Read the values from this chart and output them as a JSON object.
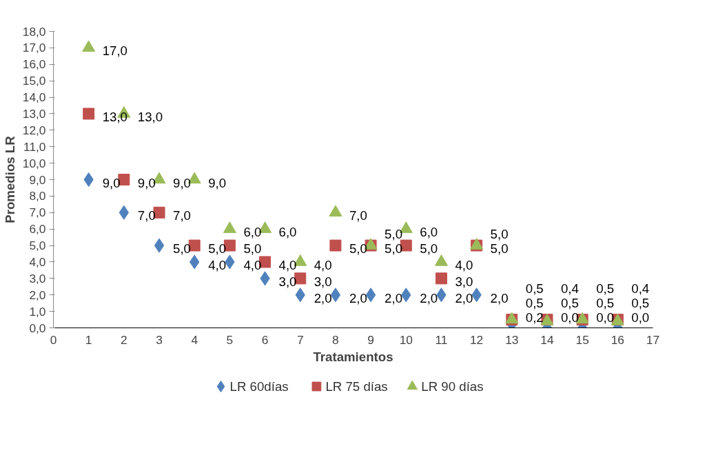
{
  "chart_data": {
    "type": "scatter",
    "xlabel": "Tratamientos",
    "ylabel": "Promedios LR",
    "x": [
      1,
      2,
      3,
      4,
      5,
      6,
      7,
      8,
      9,
      10,
      11,
      12,
      13,
      14,
      15,
      16
    ],
    "series": [
      {
        "name": "LR 60días",
        "color": "#4f81bd",
        "marker": "diamond",
        "values": [
          9,
          7,
          5,
          4,
          4,
          3,
          2,
          2,
          2,
          2,
          2,
          2,
          0.2,
          0,
          0,
          0
        ],
        "value_labels": [
          "9,0",
          "7,0",
          "5,0",
          "4,0",
          "4,0",
          "3,0",
          "2,0",
          "2,0",
          "2,0",
          "2,0",
          "2,0",
          "2,0",
          "0,2",
          "0,0",
          "0,0",
          "0,0"
        ]
      },
      {
        "name": "LR 75 días",
        "color": "#c0504d",
        "marker": "square",
        "values": [
          13,
          9,
          7,
          5,
          5,
          4,
          3,
          5,
          5,
          5,
          3,
          5,
          0.5,
          0.5,
          0.5,
          0.5
        ],
        "value_labels": [
          "13,0",
          "9,0",
          "7,0",
          "5,0",
          "5,0",
          "4,0",
          "3,0",
          "5,0",
          "5,0",
          "5,0",
          "3,0",
          "5,0",
          "0,5",
          "0,5",
          "0,5",
          "0,5"
        ]
      },
      {
        "name": "LR 90 días",
        "color": "#9bbb59",
        "marker": "triangle",
        "values": [
          17,
          13,
          9,
          9,
          6,
          6,
          4,
          7,
          5,
          6,
          4,
          5,
          0.5,
          0.4,
          0.5,
          0.4
        ],
        "value_labels": [
          "17,0",
          "13,0",
          "9,0",
          "9,0",
          "6,0",
          "6,0",
          "4,0",
          "7,0",
          "5,0",
          "6,0",
          "4,0",
          "5,0",
          "0,5",
          "0,4",
          "0,5",
          "0,4"
        ]
      }
    ],
    "xlim": [
      0,
      17
    ],
    "xticks": [
      0,
      1,
      2,
      3,
      4,
      5,
      6,
      7,
      8,
      9,
      10,
      11,
      12,
      13,
      14,
      15,
      16,
      17
    ],
    "ylim": [
      0,
      18
    ],
    "yticks": [
      {
        "value": 0,
        "label": "0,0"
      },
      {
        "value": 1,
        "label": "1,0"
      },
      {
        "value": 2,
        "label": "2,0"
      },
      {
        "value": 3,
        "label": "3,0"
      },
      {
        "value": 4,
        "label": "4,0"
      },
      {
        "value": 5,
        "label": "5,0"
      },
      {
        "value": 6,
        "label": "6,0"
      },
      {
        "value": 7,
        "label": "7,0"
      },
      {
        "value": 8,
        "label": "8,0"
      },
      {
        "value": 9,
        "label": "9,0"
      },
      {
        "value": 10,
        "label": "10,0"
      },
      {
        "value": 11,
        "label": "11,0"
      },
      {
        "value": 12,
        "label": "12,0"
      },
      {
        "value": 13,
        "label": "13,0"
      },
      {
        "value": 14,
        "label": "14,0"
      },
      {
        "value": 15,
        "label": "15,0"
      },
      {
        "value": 16,
        "label": "16,0"
      },
      {
        "value": 17,
        "label": "17,0"
      },
      {
        "value": 18,
        "label": "18,0"
      }
    ],
    "grid": false,
    "legend": "bottom"
  }
}
